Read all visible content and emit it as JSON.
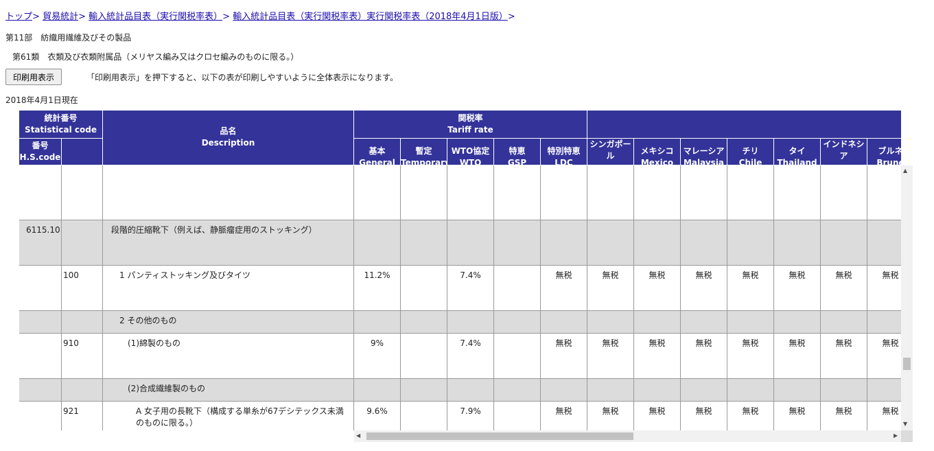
{
  "breadcrumb": [
    {
      "label": "トップ",
      "sep": ">"
    },
    {
      "label": "貿易統計",
      "sep": ">"
    },
    {
      "label": "輸入統計品目表（実行関税率表）",
      "sep": ">"
    },
    {
      "label": "輸入統計品目表（実行関税率表）実行関税率表（2018年4月1日版）",
      "sep": ">"
    }
  ],
  "section": "第11部　紡織用繊維及びその製品",
  "chapter": "第61類　衣類及び衣類附属品（メリヤス編み又はクロセ編みのものに限る。）",
  "print_button": "印刷用表示",
  "print_note": "「印刷用表示」を押下すると、以下の表が印刷しやすいように全体表示になります。",
  "date": "2018年4月1日現在",
  "header": {
    "stat_code": "統計番号",
    "stat_code_en": "Statistical code",
    "hs_no": "番号",
    "hs_code": "H.S.code",
    "desc": "品名",
    "desc_en": "Description",
    "tariff": "関税率",
    "tariff_en": "Tariff rate",
    "rate_cols": [
      {
        "jp": "基本",
        "en": "General"
      },
      {
        "jp": "暫定",
        "en": "Temporary"
      },
      {
        "jp": "WTO協定",
        "en": "WTO"
      },
      {
        "jp": "特恵",
        "en": "GSP"
      },
      {
        "jp": "特別特恵",
        "en": "LDC"
      },
      {
        "jp": "シンガポー",
        "en": "ル"
      },
      {
        "jp": "メキシコ",
        "en": "Mexico"
      },
      {
        "jp": "マレーシア",
        "en": "Malaysia"
      },
      {
        "jp": "チリ",
        "en": "Chile"
      },
      {
        "jp": "タイ",
        "en": "Thailand"
      },
      {
        "jp": "インドネシ",
        "en": "ア"
      },
      {
        "jp": "ブルネ",
        "en": "Brune"
      }
    ]
  },
  "rows": [
    {
      "hs": "",
      "stat": "",
      "desc": "",
      "indent": 0,
      "gray": false,
      "rates": [
        "",
        "",
        "",
        "",
        "",
        "",
        "",
        "",
        "",
        "",
        "",
        ""
      ]
    },
    {
      "hs": "6115.10",
      "stat": "",
      "desc": "段階的圧縮靴下（例えば、静脈瘤症用のストッキング）",
      "indent": 0,
      "gray": true,
      "rates": [
        "",
        "",
        "",
        "",
        "",
        "",
        "",
        "",
        "",
        "",
        "",
        ""
      ]
    },
    {
      "hs": "",
      "stat": "100",
      "desc": "1 パンティストッキング及びタイツ",
      "indent": 1,
      "gray": false,
      "rates": [
        "11.2%",
        "",
        "7.4%",
        "",
        "無税",
        "無税",
        "無税",
        "無税",
        "無税",
        "無税",
        "無税",
        "無税"
      ]
    },
    {
      "hs": "",
      "stat": "",
      "desc": "2 その他のもの",
      "indent": 1,
      "gray": true,
      "rates": [
        "",
        "",
        "",
        "",
        "",
        "",
        "",
        "",
        "",
        "",
        "",
        ""
      ]
    },
    {
      "hs": "",
      "stat": "910",
      "desc": "(1)綿製のもの",
      "indent": 2,
      "gray": false,
      "rates": [
        "9%",
        "",
        "7.4%",
        "",
        "無税",
        "無税",
        "無税",
        "無税",
        "無税",
        "無税",
        "無税",
        "無税"
      ]
    },
    {
      "hs": "",
      "stat": "",
      "desc": "(2)合成繊維製のもの",
      "indent": 2,
      "gray": true,
      "rates": [
        "",
        "",
        "",
        "",
        "",
        "",
        "",
        "",
        "",
        "",
        "",
        ""
      ]
    },
    {
      "hs": "",
      "stat": "921",
      "desc": "A 女子用の長靴下（構成する単糸が67デシテックス未満のものに限る。）",
      "indent": 3,
      "gray": false,
      "rates": [
        "9.6%",
        "",
        "7.9%",
        "",
        "無税",
        "無税",
        "無税",
        "無税",
        "無税",
        "無税",
        "無税",
        "無税"
      ]
    }
  ],
  "scroll_arrows": {
    "up": "▲",
    "down": "▼",
    "left": "◀",
    "right": "▶"
  }
}
